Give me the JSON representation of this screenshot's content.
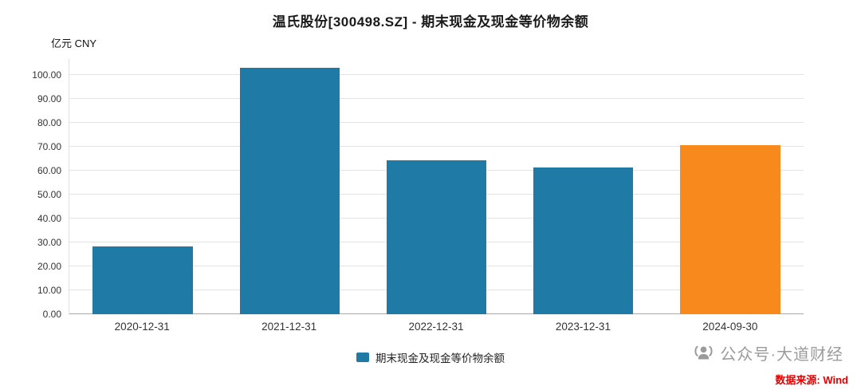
{
  "title": "温氏股份[300498.SZ] - 期末现金及现金等价物余额",
  "unit_label": "亿元 CNY",
  "chart_data": {
    "type": "bar",
    "title": "温氏股份[300498.SZ] - 期末现金及现金等价物余额",
    "categories": [
      "2020-12-31",
      "2021-12-31",
      "2022-12-31",
      "2023-12-31",
      "2024-09-30"
    ],
    "values": [
      28.2,
      103.0,
      64.3,
      61.4,
      70.6
    ],
    "bar_colors": [
      "#1F7AA6",
      "#1F7AA6",
      "#1F7AA6",
      "#1F7AA6",
      "#F8891C"
    ],
    "ylabel": "亿元 CNY",
    "xlabel": "",
    "ylim": [
      0,
      106.67
    ],
    "ytick_step": 10,
    "yticks": [
      "0.00",
      "10.00",
      "20.00",
      "30.00",
      "40.00",
      "50.00",
      "60.00",
      "70.00",
      "80.00",
      "90.00",
      "100.00"
    ],
    "grid": true,
    "legend": [
      {
        "label": "期末现金及现金等价物余额",
        "color": "#1F7AA6"
      }
    ],
    "legend_position": "bottom"
  },
  "footer": {
    "watermark": "公众号·大道财经",
    "wechat_icon": "wechat-broadcast-icon",
    "source": "数据来源: Wind",
    "source_color": "#E60000",
    "watermark_color": "#9B9B9B"
  },
  "colors": {
    "bar_blue": "#1F7AA6",
    "bar_orange": "#F8891C",
    "gridline": "#E4E4E4",
    "baseline": "#A9A9A9"
  }
}
